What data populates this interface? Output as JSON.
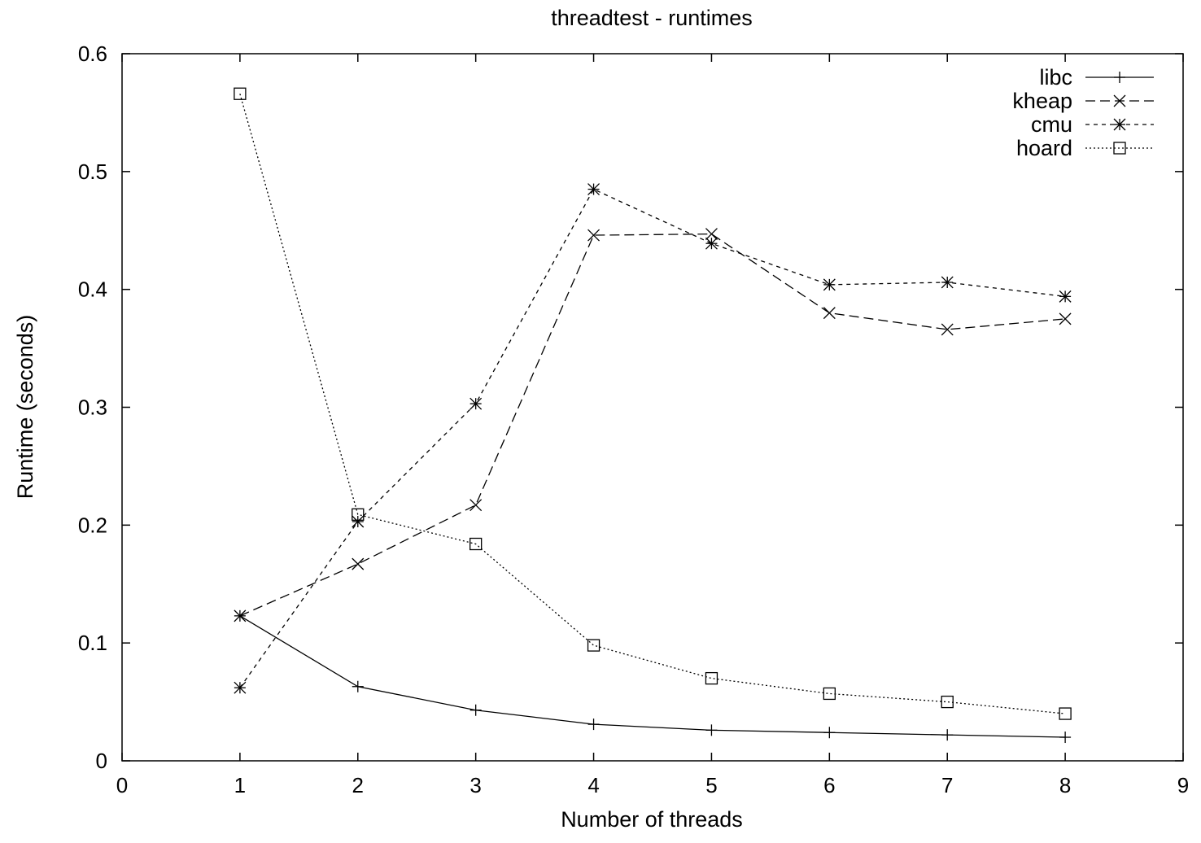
{
  "chart_data": {
    "type": "line",
    "title": "threadtest - runtimes",
    "xlabel": "Number of threads",
    "ylabel": "Runtime (seconds)",
    "xlim": [
      0,
      9
    ],
    "ylim": [
      0,
      0.6
    ],
    "xticks": [
      "0",
      "1",
      "2",
      "3",
      "4",
      "5",
      "6",
      "7",
      "8",
      "9"
    ],
    "yticks": [
      "0",
      "0.1",
      "0.2",
      "0.3",
      "0.4",
      "0.5",
      "0.6"
    ],
    "grid": false,
    "legend_position": "top-right",
    "x": [
      1,
      2,
      3,
      4,
      5,
      6,
      7,
      8
    ],
    "series": [
      {
        "name": "libc",
        "marker": "plus",
        "dash": "solid",
        "values": [
          0.123,
          0.063,
          0.043,
          0.031,
          0.026,
          0.024,
          0.022,
          0.02
        ]
      },
      {
        "name": "kheap",
        "marker": "cross",
        "dash": "dashed",
        "values": [
          0.123,
          0.167,
          0.217,
          0.446,
          0.447,
          0.38,
          0.366,
          0.375
        ]
      },
      {
        "name": "cmu",
        "marker": "star",
        "dash": "shortdash",
        "values": [
          0.062,
          0.203,
          0.303,
          0.485,
          0.439,
          0.404,
          0.406,
          0.394
        ]
      },
      {
        "name": "hoard",
        "marker": "square",
        "dash": "dotted",
        "values": [
          0.566,
          0.209,
          0.184,
          0.098,
          0.07,
          0.057,
          0.05,
          0.04
        ]
      }
    ]
  }
}
